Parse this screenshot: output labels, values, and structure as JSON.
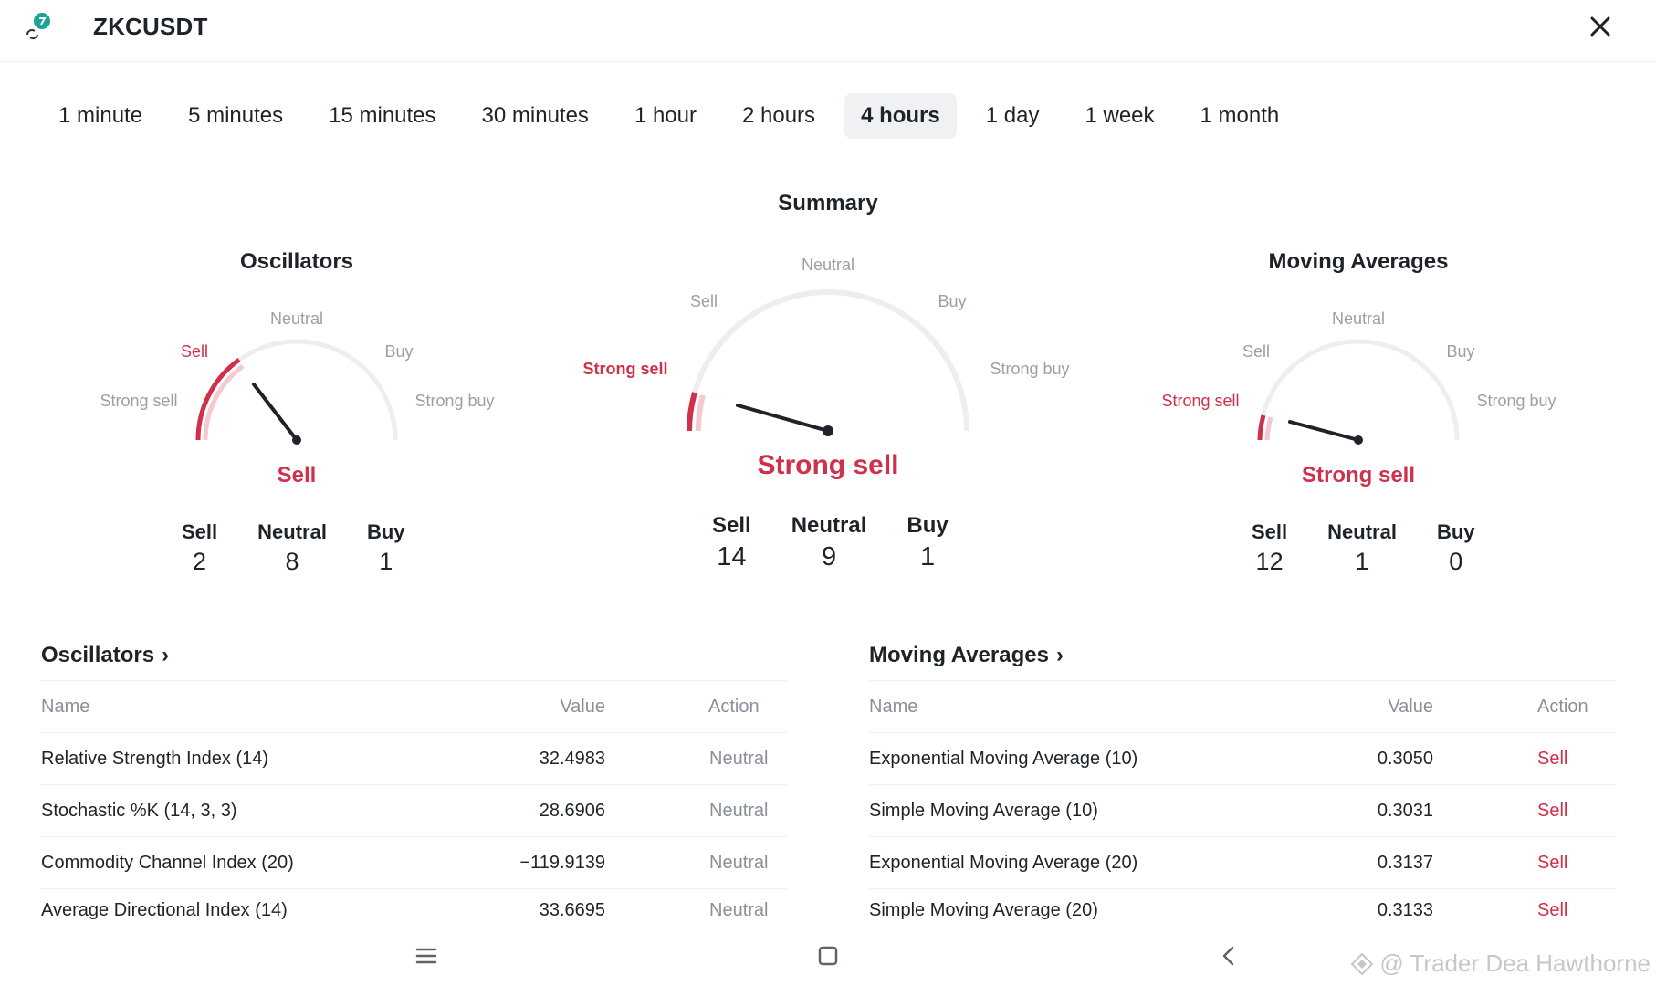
{
  "header": {
    "symbol": "ZKCUSDT"
  },
  "tabs": [
    {
      "label": "1 minute",
      "active": false
    },
    {
      "label": "5 minutes",
      "active": false
    },
    {
      "label": "15 minutes",
      "active": false
    },
    {
      "label": "30 minutes",
      "active": false
    },
    {
      "label": "1 hour",
      "active": false
    },
    {
      "label": "2 hours",
      "active": false
    },
    {
      "label": "4 hours",
      "active": true
    },
    {
      "label": "1 day",
      "active": false
    },
    {
      "label": "1 week",
      "active": false
    },
    {
      "label": "1 month",
      "active": false
    }
  ],
  "summary_title": "Summary",
  "gauges": {
    "oscillators": {
      "title": "Oscillators",
      "labels": {
        "strong_sell": "Strong sell",
        "sell": "Sell",
        "neutral": "Neutral",
        "buy": "Buy",
        "strong_buy": "Strong buy"
      },
      "result": "Sell",
      "counts": [
        {
          "label": "Sell",
          "value": "2"
        },
        {
          "label": "Neutral",
          "value": "8"
        },
        {
          "label": "Buy",
          "value": "1"
        }
      ]
    },
    "summary": {
      "labels": {
        "strong_sell": "Strong sell",
        "sell": "Sell",
        "neutral": "Neutral",
        "buy": "Buy",
        "strong_buy": "Strong buy"
      },
      "result": "Strong sell",
      "counts": [
        {
          "label": "Sell",
          "value": "14"
        },
        {
          "label": "Neutral",
          "value": "9"
        },
        {
          "label": "Buy",
          "value": "1"
        }
      ]
    },
    "moving_averages": {
      "title": "Moving Averages",
      "labels": {
        "strong_sell": "Strong sell",
        "sell": "Sell",
        "neutral": "Neutral",
        "buy": "Buy",
        "strong_buy": "Strong buy"
      },
      "result": "Strong sell",
      "counts": [
        {
          "label": "Sell",
          "value": "12"
        },
        {
          "label": "Neutral",
          "value": "1"
        },
        {
          "label": "Buy",
          "value": "0"
        }
      ]
    }
  },
  "tables": {
    "oscillators": {
      "title": "Oscillators",
      "columns": {
        "name": "Name",
        "value": "Value",
        "action": "Action"
      },
      "rows": [
        {
          "name": "Relative Strength Index (14)",
          "value": "32.4983",
          "action": "Neutral"
        },
        {
          "name": "Stochastic %K (14, 3, 3)",
          "value": "28.6906",
          "action": "Neutral"
        },
        {
          "name": "Commodity Channel Index (20)",
          "value": "−119.9139",
          "action": "Neutral"
        },
        {
          "name": "Average Directional Index (14)",
          "value": "33.6695",
          "action": "Neutral"
        }
      ]
    },
    "moving_averages": {
      "title": "Moving Averages",
      "columns": {
        "name": "Name",
        "value": "Value",
        "action": "Action"
      },
      "rows": [
        {
          "name": "Exponential Moving Average (10)",
          "value": "0.3050",
          "action": "Sell"
        },
        {
          "name": "Simple Moving Average (10)",
          "value": "0.3031",
          "action": "Sell"
        },
        {
          "name": "Exponential Moving Average (20)",
          "value": "0.3137",
          "action": "Sell"
        },
        {
          "name": "Simple Moving Average (20)",
          "value": "0.3133",
          "action": "Sell"
        }
      ]
    }
  },
  "watermark": "@ Trader Dea Hawthorne",
  "colors": {
    "sell": "#cf304a",
    "text": "#1e2329",
    "muted": "#8a9099",
    "track": "#eeeeee"
  }
}
